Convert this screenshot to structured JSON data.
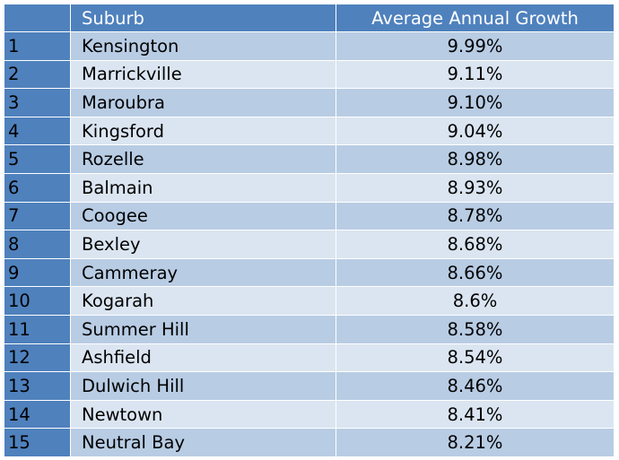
{
  "table": {
    "headers": {
      "rank": "",
      "suburb": "Suburb",
      "growth": "Average Annual Growth"
    },
    "rows": [
      {
        "rank": "1",
        "suburb": "Kensington",
        "growth": "9.99%"
      },
      {
        "rank": "2",
        "suburb": "Marrickville",
        "growth": "9.11%"
      },
      {
        "rank": "3",
        "suburb": "Maroubra",
        "growth": "9.10%"
      },
      {
        "rank": "4",
        "suburb": "Kingsford",
        "growth": "9.04%"
      },
      {
        "rank": "5",
        "suburb": "Rozelle",
        "growth": "8.98%"
      },
      {
        "rank": "6",
        "suburb": "Balmain",
        "growth": "8.93%"
      },
      {
        "rank": "7",
        "suburb": "Coogee",
        "growth": "8.78%"
      },
      {
        "rank": "8",
        "suburb": "Bexley",
        "growth": "8.68%"
      },
      {
        "rank": "9",
        "suburb": "Cammeray",
        "growth": "8.66%"
      },
      {
        "rank": "10",
        "suburb": "Kogarah",
        "growth": "8.6%"
      },
      {
        "rank": "11",
        "suburb": "Summer Hill",
        "growth": "8.58%"
      },
      {
        "rank": "12",
        "suburb": "Ashfield",
        "growth": "8.54%"
      },
      {
        "rank": "13",
        "suburb": "Dulwich Hill",
        "growth": "8.46%"
      },
      {
        "rank": "14",
        "suburb": "Newtown",
        "growth": "8.41%"
      },
      {
        "rank": "15",
        "suburb": "Neutral Bay",
        "growth": "8.21%"
      }
    ]
  },
  "colors": {
    "header_bg": "#4f81bd",
    "header_text": "#ffffff",
    "rank_bg": "#4f81bd",
    "row_dark": "#b8cce4",
    "row_light": "#dbe5f1"
  }
}
